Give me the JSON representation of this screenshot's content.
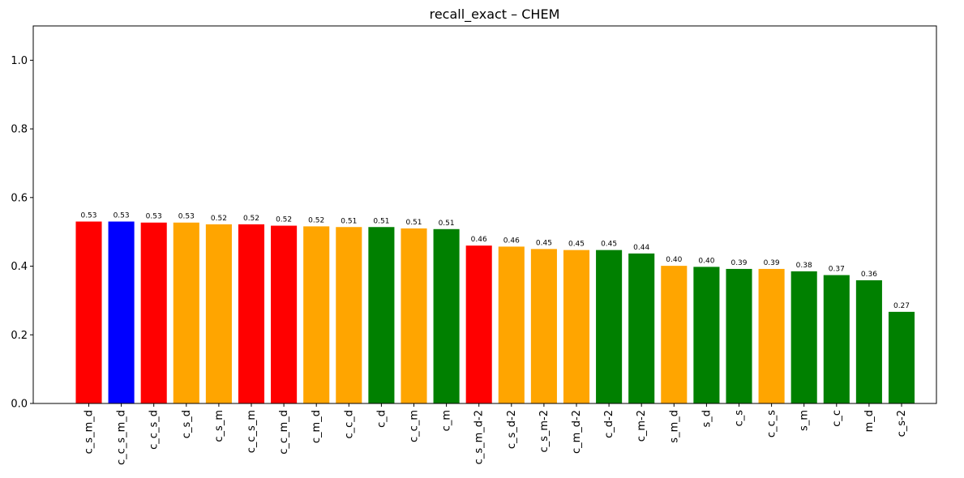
{
  "chart_data": {
    "type": "bar",
    "title": "recall_exact – CHEM",
    "xlabel": "",
    "ylabel": "",
    "ylim": [
      0,
      1.1
    ],
    "yticks": [
      "0.0",
      "0.2",
      "0.4",
      "0.6",
      "0.8",
      "1.0"
    ],
    "grid": false,
    "categories": [
      "c_s_m_d",
      "c_c_s_m_d",
      "c_c_s_d",
      "c_s_d",
      "c_s_m",
      "c_c_s_m",
      "c_c_m_d",
      "c_m_d",
      "c_c_d",
      "c_d",
      "c_c_m",
      "c_m",
      "c_s_m_d-2",
      "c_s_d-2",
      "c_s_m-2",
      "c_m_d-2",
      "c_d-2",
      "c_m-2",
      "s_m_d",
      "s_d",
      "c_s",
      "c_c_s",
      "s_m",
      "c_c",
      "m_d",
      "c_s-2"
    ],
    "values": [
      0.53,
      0.53,
      0.527,
      0.527,
      0.522,
      0.522,
      0.518,
      0.516,
      0.514,
      0.514,
      0.51,
      0.508,
      0.46,
      0.457,
      0.45,
      0.447,
      0.447,
      0.437,
      0.401,
      0.398,
      0.392,
      0.392,
      0.385,
      0.374,
      0.359,
      0.267
    ],
    "value_labels": [
      "0.53",
      "0.53",
      "0.53",
      "0.53",
      "0.52",
      "0.52",
      "0.52",
      "0.52",
      "0.51",
      "0.51",
      "0.51",
      "0.51",
      "0.46",
      "0.46",
      "0.45",
      "0.45",
      "0.45",
      "0.44",
      "0.40",
      "0.40",
      "0.39",
      "0.39",
      "0.38",
      "0.37",
      "0.36",
      "0.27"
    ],
    "colors": [
      "#ff0000",
      "#0000ff",
      "#ff0000",
      "#ffa500",
      "#ffa500",
      "#ff0000",
      "#ff0000",
      "#ffa500",
      "#ffa500",
      "#008000",
      "#ffa500",
      "#008000",
      "#ff0000",
      "#ffa500",
      "#ffa500",
      "#ffa500",
      "#008000",
      "#008000",
      "#ffa500",
      "#008000",
      "#008000",
      "#ffa500",
      "#008000",
      "#008000",
      "#008000",
      "#008000"
    ]
  }
}
